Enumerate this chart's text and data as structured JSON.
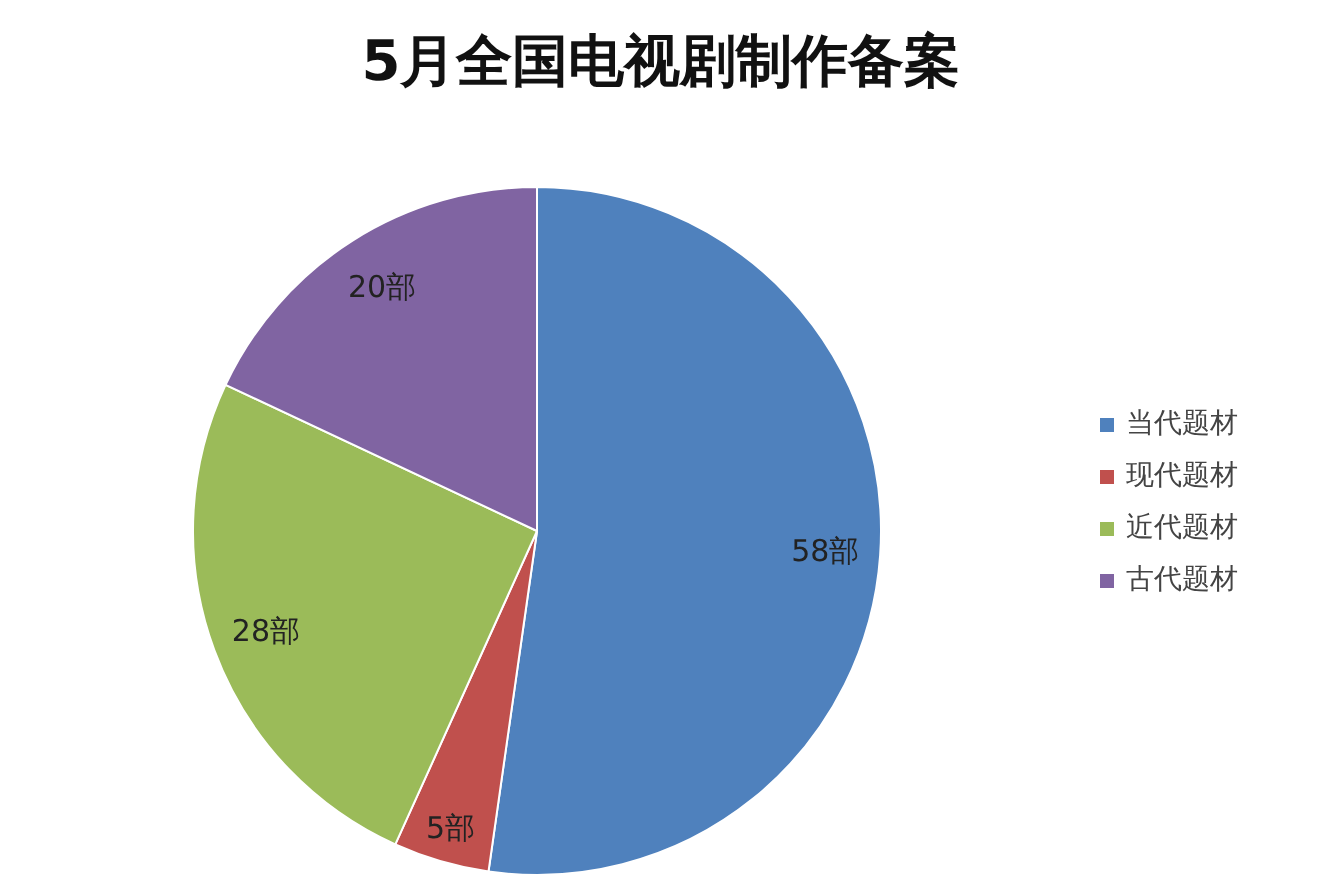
{
  "chart_data": {
    "type": "pie",
    "title": "5月全国电视剧制作备案",
    "categories": [
      "当代题材",
      "现代题材",
      "近代题材",
      "古代题材"
    ],
    "values": [
      58,
      5,
      28,
      20
    ],
    "colors": [
      "#4f81bd",
      "#c0504d",
      "#9bbb59",
      "#8064a2"
    ],
    "value_labels": [
      "58部",
      "5部",
      "28部",
      "20部"
    ],
    "legend": "right"
  }
}
